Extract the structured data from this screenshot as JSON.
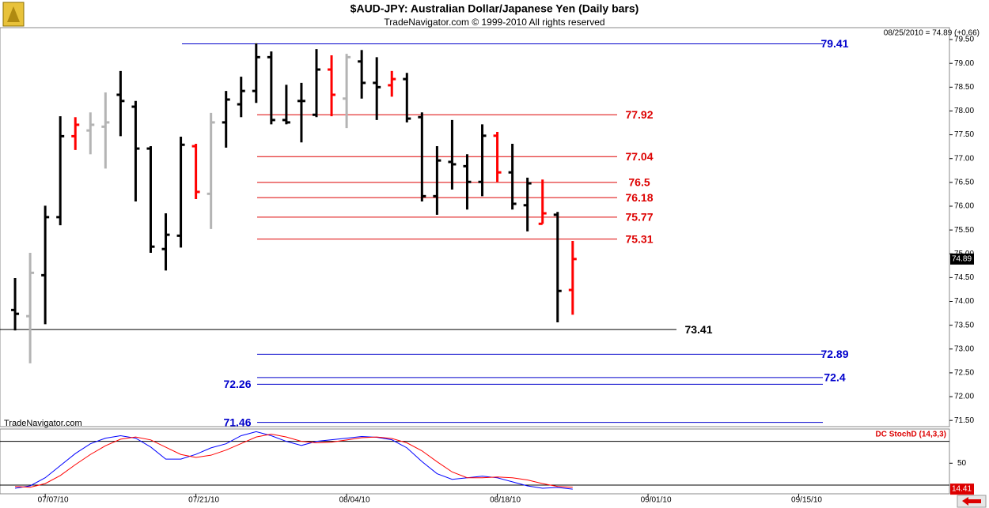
{
  "chart_data": [
    {
      "type": "ohlc",
      "title": "$AUD-JPY:  Australian Dollar/Japanese Yen  (Daily bars)",
      "subtitle": "TradeNavigator.com © 1999-2010 All rights reserved",
      "status": "08/25/2010 = 74.89 (+0.66)",
      "watermark": "TradeNavigator.com",
      "open": [
        73.82,
        73.69,
        74.55,
        75.77,
        77.47,
        77.59,
        77.67,
        78.34,
        78.09,
        77.21,
        75.1,
        75.38,
        77.26,
        76.26,
        77.76,
        78.14,
        78.42,
        79.13,
        77.81,
        78.21,
        77.92,
        78.87,
        78.26,
        79.04,
        78.59,
        78.54,
        78.67,
        77.87,
        76.21,
        76.93,
        76.84,
        76.51,
        77.48,
        76.71,
        76.02,
        75.63,
        75.82,
        74.24
      ],
      "high": [
        74.49,
        75.02,
        76.01,
        77.89,
        77.87,
        77.97,
        78.39,
        78.84,
        78.21,
        77.26,
        75.85,
        77.46,
        77.31,
        77.96,
        78.42,
        78.72,
        79.42,
        79.25,
        78.55,
        78.59,
        79.3,
        79.17,
        79.2,
        79.28,
        79.13,
        78.84,
        78.8,
        77.97,
        77.26,
        77.81,
        77.09,
        77.72,
        77.56,
        77.31,
        76.6,
        76.56,
        75.88,
        75.27
      ],
      "low": [
        73.39,
        72.7,
        73.52,
        75.6,
        77.18,
        77.09,
        76.79,
        77.47,
        76.1,
        75.02,
        74.65,
        75.13,
        76.15,
        75.52,
        77.23,
        77.87,
        78.17,
        77.72,
        77.72,
        77.34,
        77.87,
        77.89,
        77.64,
        78.26,
        77.81,
        78.3,
        77.76,
        76.1,
        75.82,
        76.35,
        75.93,
        76.21,
        76.51,
        75.93,
        75.47,
        75.63,
        73.56,
        73.72
      ],
      "close": [
        73.74,
        74.6,
        75.77,
        77.47,
        77.71,
        77.71,
        77.76,
        78.21,
        77.21,
        75.15,
        75.4,
        77.29,
        76.3,
        77.76,
        78.24,
        78.42,
        79.13,
        77.81,
        77.76,
        78.21,
        78.87,
        78.34,
        79.13,
        78.59,
        78.5,
        78.67,
        77.84,
        76.21,
        76.96,
        76.88,
        76.51,
        77.48,
        76.71,
        76.05,
        76.48,
        75.85,
        74.22,
        74.89
      ],
      "colors": [
        "#000000",
        "#b4b4b4",
        "#000000",
        "#000000",
        "#ff0000",
        "#b4b4b4",
        "#b4b4b4",
        "#000000",
        "#000000",
        "#000000",
        "#000000",
        "#000000",
        "#ff0000",
        "#b4b4b4",
        "#000000",
        "#000000",
        "#000000",
        "#000000",
        "#000000",
        "#000000",
        "#000000",
        "#ff0000",
        "#b4b4b4",
        "#000000",
        "#000000",
        "#ff0000",
        "#000000",
        "#000000",
        "#000000",
        "#000000",
        "#000000",
        "#000000",
        "#ff0000",
        "#000000",
        "#000000",
        "#ff0000",
        "#000000",
        "#ff0000"
      ],
      "xlim": [
        -1,
        62
      ],
      "xticks": [
        {
          "value": 2,
          "label": "07/07/10"
        },
        {
          "value": 12,
          "label": "07/21/10"
        },
        {
          "value": 22,
          "label": "08/04/10"
        },
        {
          "value": 32,
          "label": "08/18/10"
        },
        {
          "value": 42,
          "label": "09/01/10"
        },
        {
          "value": 52,
          "label": "09/15/10"
        }
      ],
      "ylim": [
        71.37,
        79.75
      ],
      "yticks": [
        {
          "value": 71.5,
          "label": "71.50"
        },
        {
          "value": 72,
          "label": "72.00"
        },
        {
          "value": 72.5,
          "label": "72.50"
        },
        {
          "value": 73,
          "label": "73.00"
        },
        {
          "value": 73.5,
          "label": "73.50"
        },
        {
          "value": 74,
          "label": "74.00"
        },
        {
          "value": 74.5,
          "label": "74.50"
        },
        {
          "value": 75,
          "label": "75.00"
        },
        {
          "value": 75.5,
          "label": "75.50"
        },
        {
          "value": 76,
          "label": "76.00"
        },
        {
          "value": 76.5,
          "label": "76.50"
        },
        {
          "value": 77,
          "label": "77.00"
        },
        {
          "value": 77.5,
          "label": "77.50"
        },
        {
          "value": 78,
          "label": "78.00"
        },
        {
          "value": 78.5,
          "label": "78.50"
        },
        {
          "value": 79,
          "label": "79.00"
        },
        {
          "value": 79.5,
          "label": "79.50"
        }
      ],
      "levels": [
        {
          "value": 79.41,
          "color": "#0000cc"
        },
        {
          "value": 77.92,
          "color": "#dd0000"
        },
        {
          "value": 77.04,
          "color": "#dd0000"
        },
        {
          "value": 76.5,
          "color": "#dd0000"
        },
        {
          "value": 76.18,
          "color": "#dd0000"
        },
        {
          "value": 75.77,
          "color": "#dd0000"
        },
        {
          "value": 75.31,
          "color": "#dd0000"
        },
        {
          "value": 73.41,
          "color": "#000000"
        },
        {
          "value": 72.89,
          "color": "#0000cc"
        },
        {
          "value": 72.4,
          "color": "#0000cc"
        },
        {
          "value": 72.26,
          "color": "#0000cc"
        },
        {
          "value": 71.46,
          "color": "#0000cc"
        }
      ]
    },
    {
      "type": "line",
      "title": "DC StochD (14,3,3)",
      "series": [
        {
          "color": "#0000ff",
          "values": [
            15.6,
            18.9,
            30,
            46.7,
            63.3,
            76.7,
            84.4,
            87.8,
            84.4,
            72.2,
            55.6,
            55.6,
            62.2,
            71.1,
            76.7,
            87.8,
            93.3,
            87.8,
            80,
            74.4,
            80,
            82.2,
            84.4,
            86.7,
            85.6,
            82.2,
            71.1,
            52.2,
            35.6,
            27.8,
            30,
            32.2,
            30,
            24.4,
            18.9,
            15.6,
            16.7,
            14.41
          ]
        },
        {
          "color": "#ff0000",
          "values": [
            18,
            17,
            22,
            33,
            48,
            62,
            74,
            83,
            86,
            82,
            72,
            62,
            58,
            61,
            68,
            77,
            86,
            90,
            86,
            80,
            78,
            79,
            82,
            85,
            86,
            84,
            78,
            67,
            52,
            38,
            30,
            30,
            31,
            30,
            27,
            22,
            18,
            17
          ]
        }
      ],
      "ylim": [
        8,
        97
      ],
      "yticks": [
        50
      ],
      "reference_lines": [
        20,
        80
      ]
    }
  ]
}
